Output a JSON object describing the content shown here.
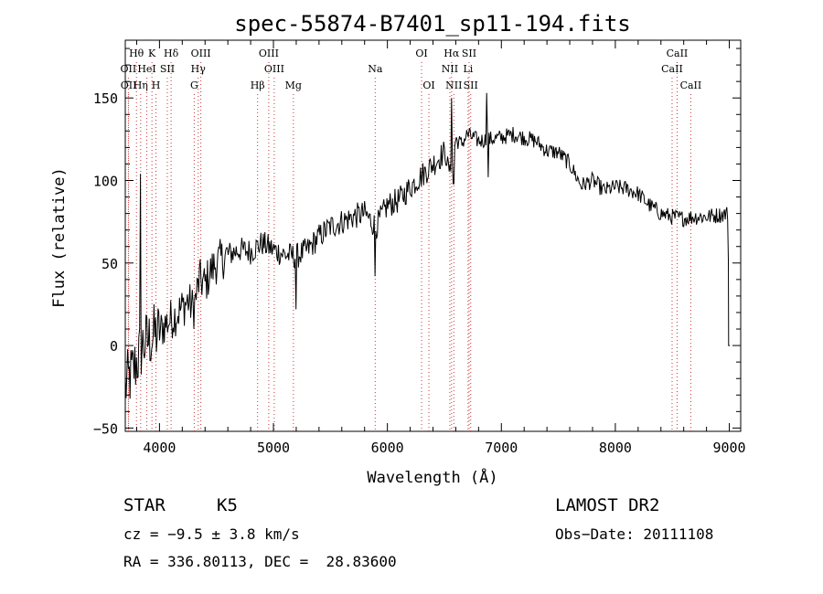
{
  "chart_data": {
    "type": "line",
    "title": "spec-55874-B7401_sp11-194.fits",
    "xlabel": "Wavelength (Å)",
    "ylabel": "Flux (relative)",
    "xlim": [
      3700,
      9100
    ],
    "ylim": [
      -52,
      185
    ],
    "xticks": [
      4000,
      5000,
      6000,
      7000,
      8000,
      9000
    ],
    "yticks": [
      -50,
      0,
      50,
      100,
      150
    ],
    "line_color": "#000000",
    "marker_color": "#cc3333",
    "spectrum_continuum": [
      [
        3700,
        -25
      ],
      [
        3750,
        -18
      ],
      [
        3800,
        -10
      ],
      [
        3850,
        0
      ],
      [
        3900,
        3
      ],
      [
        3950,
        6
      ],
      [
        4000,
        8
      ],
      [
        4050,
        13
      ],
      [
        4100,
        16
      ],
      [
        4150,
        19
      ],
      [
        4200,
        23
      ],
      [
        4250,
        27
      ],
      [
        4300,
        22
      ],
      [
        4350,
        40
      ],
      [
        4400,
        37
      ],
      [
        4450,
        45
      ],
      [
        4500,
        50
      ],
      [
        4600,
        55
      ],
      [
        4700,
        58
      ],
      [
        4800,
        57
      ],
      [
        4900,
        62
      ],
      [
        5000,
        58
      ],
      [
        5100,
        55
      ],
      [
        5200,
        54
      ],
      [
        5300,
        58
      ],
      [
        5400,
        66
      ],
      [
        5500,
        72
      ],
      [
        5600,
        75
      ],
      [
        5700,
        78
      ],
      [
        5800,
        80
      ],
      [
        5900,
        72
      ],
      [
        6000,
        85
      ],
      [
        6100,
        88
      ],
      [
        6200,
        96
      ],
      [
        6300,
        103
      ],
      [
        6400,
        110
      ],
      [
        6500,
        117
      ],
      [
        6550,
        105
      ],
      [
        6600,
        125
      ],
      [
        6650,
        122
      ],
      [
        6700,
        128
      ],
      [
        6800,
        124
      ],
      [
        6900,
        125
      ],
      [
        7000,
        126
      ],
      [
        7100,
        128
      ],
      [
        7200,
        126
      ],
      [
        7300,
        124
      ],
      [
        7400,
        118
      ],
      [
        7500,
        117
      ],
      [
        7600,
        110
      ],
      [
        7700,
        97
      ],
      [
        7800,
        100
      ],
      [
        7900,
        94
      ],
      [
        8000,
        96
      ],
      [
        8100,
        95
      ],
      [
        8200,
        92
      ],
      [
        8300,
        85
      ],
      [
        8400,
        80
      ],
      [
        8500,
        78
      ],
      [
        8600,
        77
      ],
      [
        8700,
        78
      ],
      [
        8800,
        78
      ],
      [
        8900,
        79
      ],
      [
        8990,
        80
      ]
    ],
    "spectrum_features": [
      {
        "x": 3835,
        "y": 104
      },
      {
        "x": 5200,
        "y": 22
      },
      {
        "x": 5890,
        "y": 42
      },
      {
        "x": 6563,
        "y": 150
      },
      {
        "x": 6580,
        "y": 98
      },
      {
        "x": 6870,
        "y": 153
      },
      {
        "x": 6885,
        "y": 102
      }
    ],
    "line_markers": [
      {
        "group": "Hθ",
        "waves": [
          3798
        ]
      },
      {
        "group": "K",
        "waves": [
          3934
        ]
      },
      {
        "group": "Hδ",
        "waves": [
          4102
        ]
      },
      {
        "group": "OIII",
        "waves": [
          4363
        ]
      },
      {
        "group": "OIII",
        "waves": [
          4959
        ]
      },
      {
        "group": "OI",
        "waves": [
          6300
        ]
      },
      {
        "group": "Hα",
        "waves": [
          6563
        ]
      },
      {
        "group": "SII",
        "waves": [
          6717
        ]
      },
      {
        "group": "CaII",
        "waves": [
          8542
        ]
      },
      {
        "group": "OII",
        "waves": [
          3727
        ]
      },
      {
        "group": "HeI",
        "waves": [
          3889
        ]
      },
      {
        "group": "SII",
        "waves": [
          4069
        ]
      },
      {
        "group": "Hγ",
        "waves": [
          4340
        ]
      },
      {
        "group": "OIII",
        "waves": [
          5007
        ]
      },
      {
        "group": "Na",
        "waves": [
          5893
        ]
      },
      {
        "group": "NII",
        "waves": [
          6548
        ]
      },
      {
        "group": "Li",
        "waves": [
          6708
        ]
      },
      {
        "group": "CaII",
        "waves": [
          8498
        ]
      },
      {
        "group": "OII",
        "waves": [
          3729
        ]
      },
      {
        "group": "Hη",
        "waves": [
          3835
        ]
      },
      {
        "group": "H",
        "waves": [
          3969
        ]
      },
      {
        "group": "G",
        "waves": [
          4305
        ]
      },
      {
        "group": "Hβ",
        "waves": [
          4861
        ]
      },
      {
        "group": "Mg",
        "waves": [
          5175
        ]
      },
      {
        "group": "OI",
        "waves": [
          6364
        ]
      },
      {
        "group": "NII",
        "waves": [
          6583
        ]
      },
      {
        "group": "SII",
        "waves": [
          6731
        ]
      },
      {
        "group": "CaII",
        "waves": [
          8662
        ]
      }
    ]
  },
  "info": {
    "object_type": "STAR",
    "subclass": "K5",
    "survey": "LAMOST DR2",
    "cz_line": "cz = −9.5 ± 3.8 km/s",
    "obs_date_line": "Obs−Date: 20111108",
    "radec_line": "RA = 336.80113, DEC =  28.83600"
  }
}
